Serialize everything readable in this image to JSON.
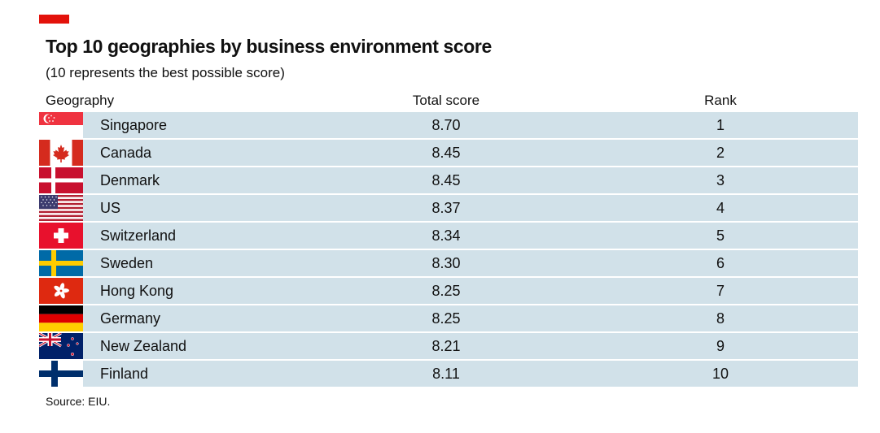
{
  "header": {
    "title": "Top 10 geographies by business environment score",
    "subtitle": "(10 represents the best possible score)"
  },
  "columns": {
    "geography": "Geography",
    "score": "Total score",
    "rank": "Rank"
  },
  "chart_data": {
    "type": "table",
    "title": "Top 10 geographies by business environment score",
    "subtitle": "(10 represents the best possible score)",
    "columns": [
      "Geography",
      "Total score",
      "Rank"
    ],
    "rows": [
      {
        "geography": "Singapore",
        "score": "8.70",
        "rank": "1",
        "flag": "singapore-flag-icon"
      },
      {
        "geography": "Canada",
        "score": "8.45",
        "rank": "2",
        "flag": "canada-flag-icon"
      },
      {
        "geography": "Denmark",
        "score": "8.45",
        "rank": "3",
        "flag": "denmark-flag-icon"
      },
      {
        "geography": "US",
        "score": "8.37",
        "rank": "4",
        "flag": "us-flag-icon"
      },
      {
        "geography": "Switzerland",
        "score": "8.34",
        "rank": "5",
        "flag": "switzerland-flag-icon"
      },
      {
        "geography": "Sweden",
        "score": "8.30",
        "rank": "6",
        "flag": "sweden-flag-icon"
      },
      {
        "geography": "Hong Kong",
        "score": "8.25",
        "rank": "7",
        "flag": "hong-kong-flag-icon"
      },
      {
        "geography": "Germany",
        "score": "8.25",
        "rank": "8",
        "flag": "germany-flag-icon"
      },
      {
        "geography": "New Zealand",
        "score": "8.21",
        "rank": "9",
        "flag": "new-zealand-flag-icon"
      },
      {
        "geography": "Finland",
        "score": "8.11",
        "rank": "10",
        "flag": "finland-flag-icon"
      }
    ],
    "source": "Source: EIU."
  },
  "colors": {
    "accent": "#e3120b",
    "row_background": "#d1e1e9",
    "text": "#111111"
  },
  "footer": {
    "source": "Source: EIU."
  }
}
